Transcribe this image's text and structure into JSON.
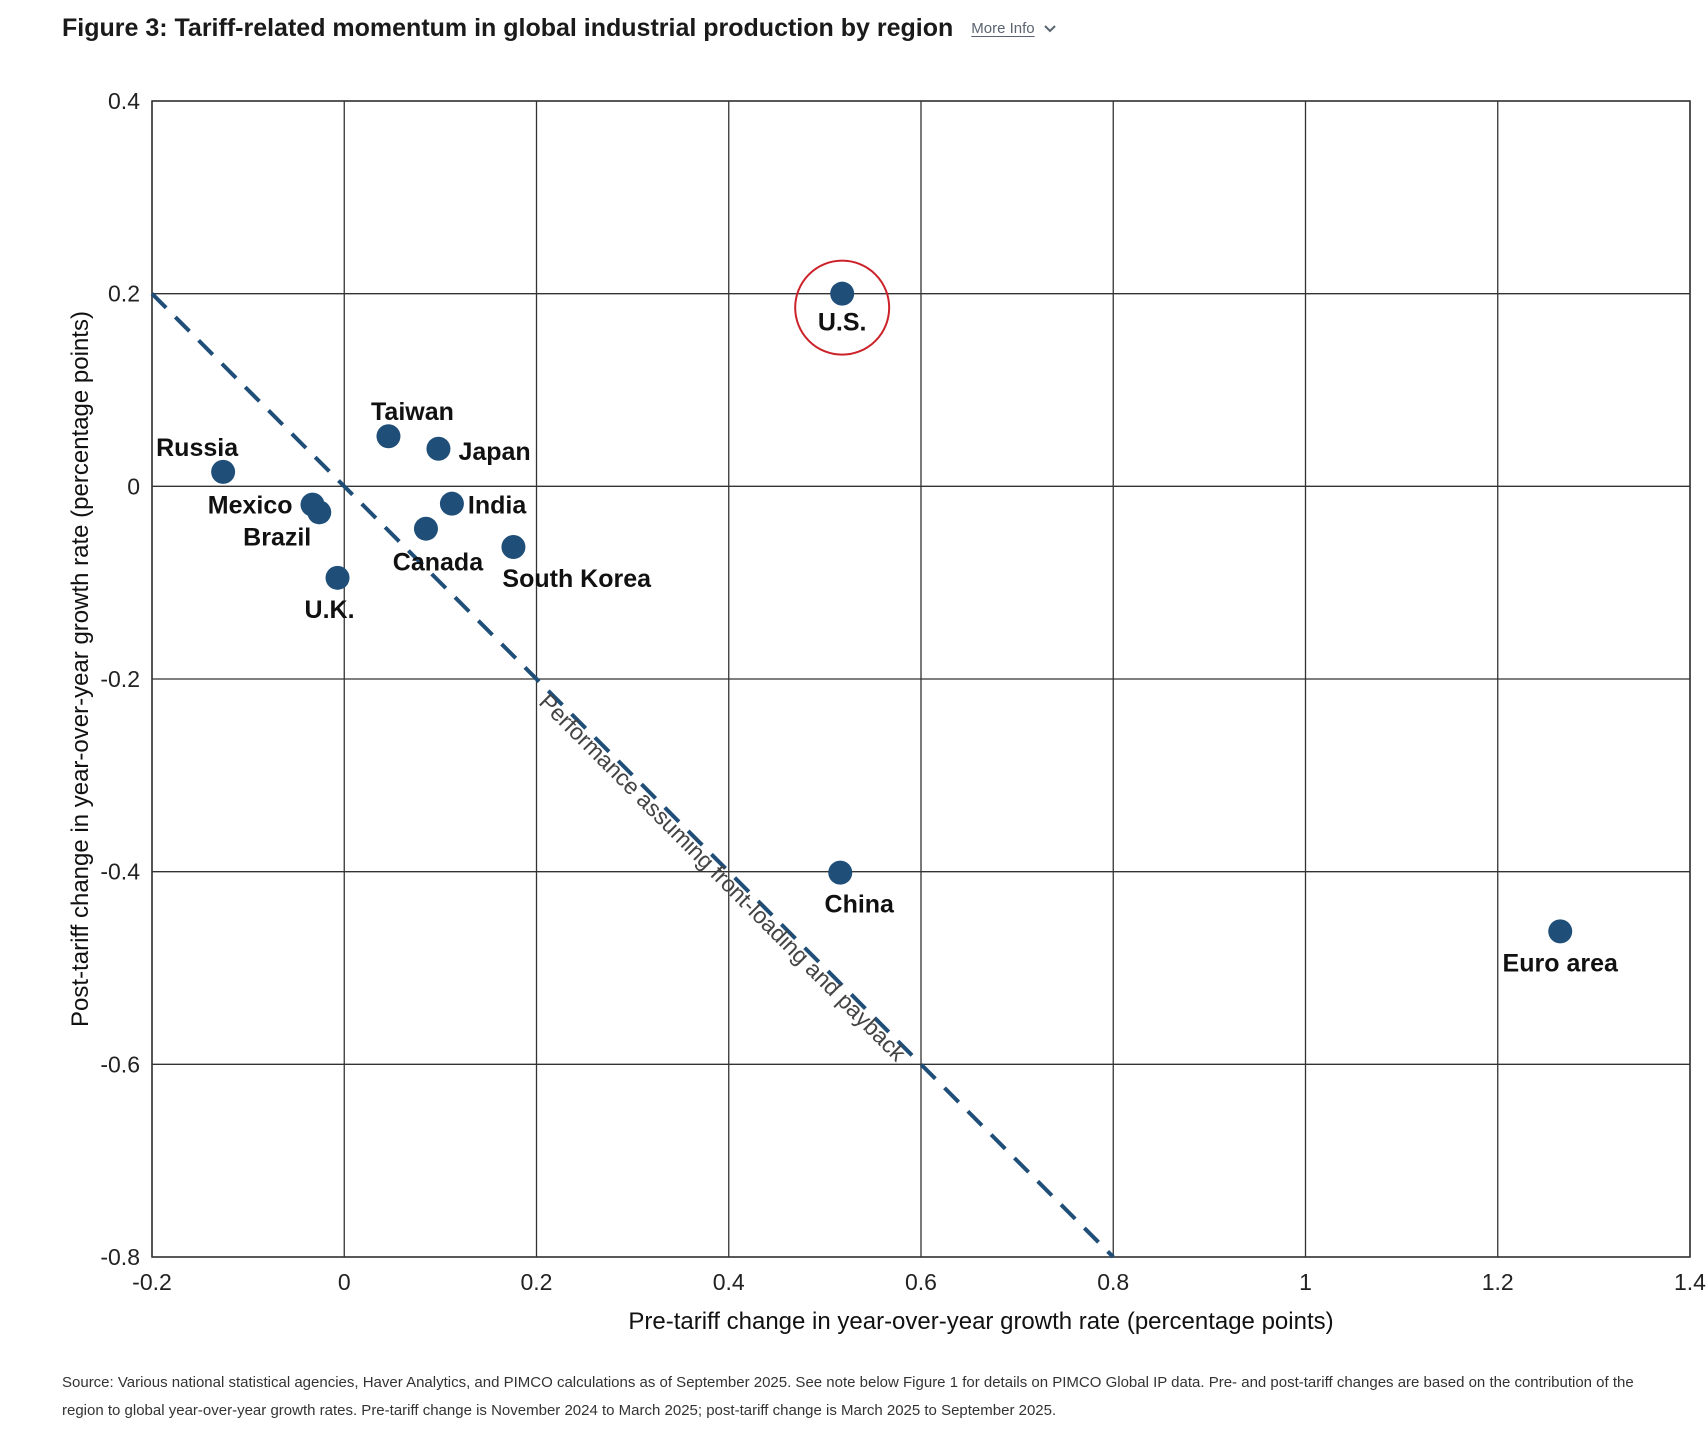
{
  "header": {
    "title": "Figure 3: Tariff-related momentum in global industrial production by region",
    "more_info_label": "More Info"
  },
  "chart_data": {
    "type": "scatter",
    "title": "Figure 3: Tariff-related momentum in global industrial production by region",
    "xlabel": "Pre-tariff change in year-over-year growth rate (percentage points)",
    "ylabel": "Post-tariff change in year-over-year growth rate (percentage points)",
    "xlim": [
      -0.2,
      1.4
    ],
    "ylim": [
      -0.8,
      0.4
    ],
    "xticks": [
      -0.2,
      0,
      0.2,
      0.4,
      0.6,
      0.8,
      1,
      1.2,
      1.4
    ],
    "xtick_labels": [
      "-0.2",
      "0",
      "0.2",
      "0.4",
      "0.6",
      "0.8",
      "1",
      "1.2",
      "1.4"
    ],
    "yticks": [
      0.4,
      0.2,
      0,
      -0.2,
      -0.4,
      -0.6,
      -0.8
    ],
    "ytick_labels": [
      "0.4",
      "0.2",
      "0",
      "-0.2",
      "-0.4",
      "-0.6",
      "-0.8"
    ],
    "grid": true,
    "marker_color": "#1f4e79",
    "highlight_color": "#cc2229",
    "points": [
      {
        "label": "Russia",
        "x": -0.126,
        "y": 0.015
      },
      {
        "label": "Mexico",
        "x": -0.033,
        "y": -0.019
      },
      {
        "label": "Brazil",
        "x": -0.026,
        "y": -0.027
      },
      {
        "label": "U.K.",
        "x": -0.007,
        "y": -0.095
      },
      {
        "label": "Taiwan",
        "x": 0.046,
        "y": 0.052
      },
      {
        "label": "Japan",
        "x": 0.098,
        "y": 0.039
      },
      {
        "label": "India",
        "x": 0.112,
        "y": -0.018
      },
      {
        "label": "Canada",
        "x": 0.085,
        "y": -0.044
      },
      {
        "label": "South Korea",
        "x": 0.176,
        "y": -0.063
      },
      {
        "label": "U.S.",
        "x": 0.518,
        "y": 0.2,
        "highlight": true
      },
      {
        "label": "China",
        "x": 0.516,
        "y": -0.401
      },
      {
        "label": "Euro area",
        "x": 1.265,
        "y": -0.462
      }
    ],
    "reference_line": {
      "label": "Performance assuming front-loading and payback",
      "x": [
        -0.2,
        0.8
      ],
      "y": [
        0.2,
        -0.8
      ],
      "style": "dashed",
      "color": "#1f4e79"
    }
  },
  "footnote": "Source: Various national statistical agencies, Haver Analytics, and PIMCO calculations as of September 2025. See note below Figure 1 for details on PIMCO Global IP data. Pre- and post-tariff changes are based on the contribution of the region to global year-over-year growth rates. Pre-tariff change is November 2024 to March 2025; post-tariff change is March 2025 to September 2025."
}
